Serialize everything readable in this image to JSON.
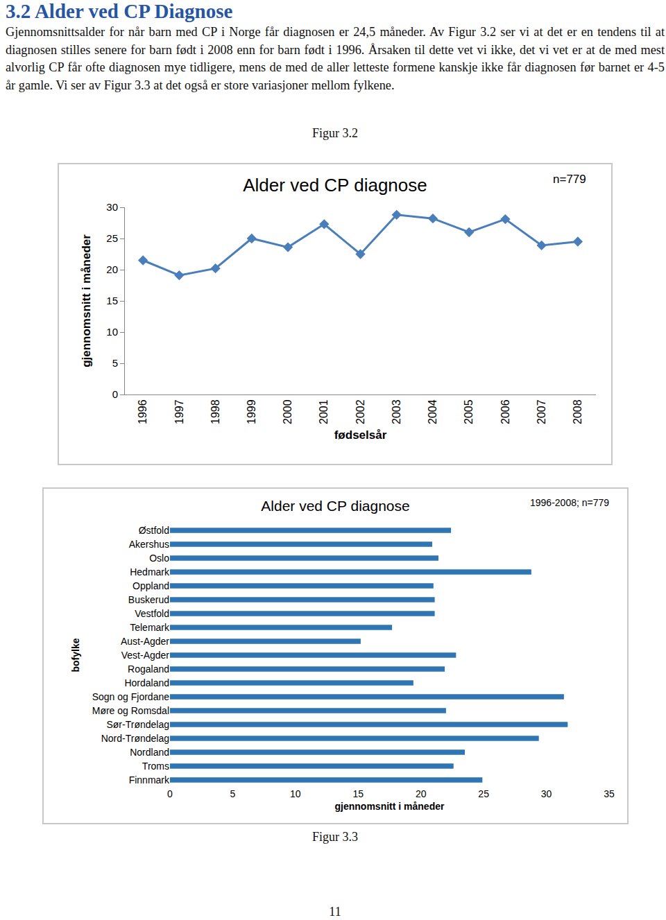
{
  "document": {
    "heading": "3.2 Alder ved CP Diagnose",
    "paragraph": "Gjennomsnittsalder for når barn med CP i Norge får diagnosen er 24,5 måneder. Av Figur 3.2 ser vi at det er en tendens til at diagnosen stilles senere for barn født i 2008 enn for barn født i 1996. Årsaken til dette vet vi ikke, det vi vet er at de med mest alvorlig CP får ofte diagnosen mye tidligere, mens de med de aller letteste formene kanskje ikke får diagnosen før barnet er 4-5 år gamle. Vi ser av Figur 3.3 at det også er store variasjoner mellom fylkene.",
    "captions": [
      "Figur 3.2",
      "Figur 3.3"
    ],
    "page_number": "11"
  },
  "chart_data": [
    {
      "type": "line",
      "title": "Alder ved CP diagnose",
      "annotation": "n=779",
      "x_label": "fødselsår",
      "y_label": "gjennomsnitt i måneder",
      "categories": [
        "1996",
        "1997",
        "1998",
        "1999",
        "2000",
        "2001",
        "2002",
        "2003",
        "2004",
        "2005",
        "2006",
        "2007",
        "2008"
      ],
      "values": [
        21.5,
        19.1,
        20.2,
        25.0,
        23.6,
        27.3,
        22.5,
        28.8,
        28.2,
        26.0,
        28.1,
        23.9,
        24.5
      ],
      "color": "#4a7ebb",
      "marker": "diamond",
      "ylim": [
        0,
        30
      ],
      "yticks": [
        0,
        5,
        10,
        15,
        20,
        25,
        30
      ],
      "grid": false
    },
    {
      "type": "bar",
      "orientation": "horizontal",
      "title": "Alder ved CP diagnose",
      "annotation": "1996-2008; n=779",
      "x_label": "gjennomsnitt i måneder",
      "y_label": "bofylke",
      "categories": [
        "Østfold",
        "Akershus",
        "Oslo",
        "Hedmark",
        "Oppland",
        "Buskerud",
        "Vestfold",
        "Telemark",
        "Aust-Agder",
        "Vest-Agder",
        "Rogaland",
        "Hordaland",
        "Sogn og Fjordane",
        "Møre og Romsdal",
        "Sør-Trøndelag",
        "Nord-Trøndelag",
        "Nordland",
        "Troms",
        "Finnmark"
      ],
      "values": [
        22.4,
        20.9,
        21.4,
        28.8,
        21.0,
        21.1,
        21.1,
        17.7,
        15.2,
        22.8,
        21.9,
        19.4,
        31.4,
        22.0,
        31.7,
        29.4,
        23.5,
        22.6,
        24.9
      ],
      "color": "#2e75b6",
      "xlim": [
        0,
        35
      ],
      "xticks": [
        0,
        5,
        10,
        15,
        20,
        25,
        30,
        35
      ],
      "grid": false
    }
  ]
}
